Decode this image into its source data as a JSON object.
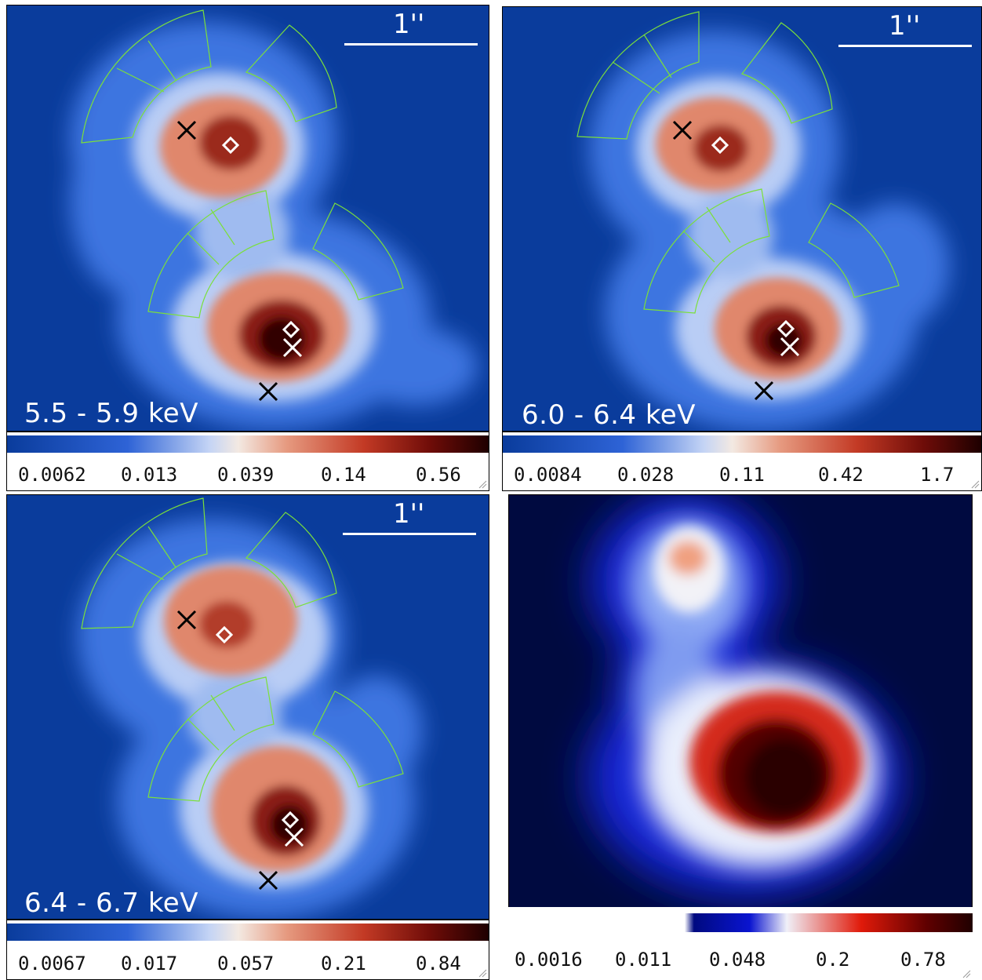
{
  "panels": [
    {
      "band_label": "5.5 - 5.9 keV",
      "scale_label": "1''",
      "colorbar_ticks": [
        "0.0062",
        "0.013",
        "0.039",
        "0.14",
        "0.56"
      ]
    },
    {
      "band_label": "6.0 - 6.4 keV",
      "scale_label": "1''",
      "colorbar_ticks": [
        "0.0084",
        "0.028",
        "0.11",
        "0.42",
        "1.7"
      ]
    },
    {
      "band_label": "6.4 - 6.7 keV",
      "scale_label": "1''",
      "colorbar_ticks": [
        "0.0067",
        "0.017",
        "0.057",
        "0.21",
        "0.84"
      ]
    },
    {
      "band_label": "",
      "scale_label": "",
      "colorbar_ticks": [
        "0.0016",
        "0.011",
        "0.048",
        "0.2",
        "0.78"
      ]
    }
  ],
  "colors": {
    "background_blue": "#0a3c9c",
    "region_outline": "#7be03a",
    "marker_black": "#000000",
    "marker_white": "#ffffff"
  }
}
